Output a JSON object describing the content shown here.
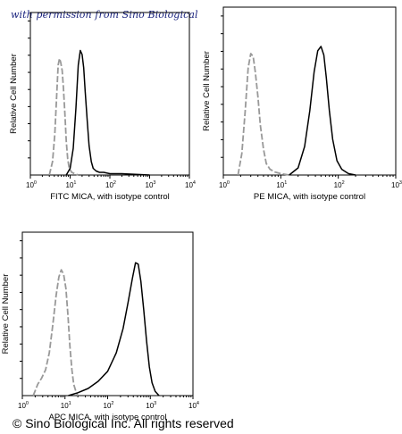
{
  "watermark": "with permission from Sino Biological",
  "copyright": "© Sino Biological Inc. All rights reserved",
  "colors": {
    "isotype": "#999999",
    "sample": "#000000",
    "watermark": "#1a237e"
  },
  "chart_data": [
    {
      "id": "fitc",
      "type": "line",
      "xscale": "log",
      "xlim": [
        1,
        10000
      ],
      "ylim": [
        0,
        1
      ],
      "xticks": [
        "10",
        "10",
        "10",
        "10",
        "10"
      ],
      "xtick_exponents": [
        "0",
        "1",
        "2",
        "3",
        "4"
      ],
      "xlabel": "FITC MICA,  with isotype control",
      "ylabel": "Relative Cell Number",
      "grid": false,
      "series": [
        {
          "role": "isotype",
          "style": "dashed",
          "color": "#999999",
          "x": [
            3.0,
            3.6,
            4.1,
            4.6,
            5.0,
            5.4,
            5.8,
            6.3,
            6.8,
            7.4,
            8.0,
            8.7,
            9.5,
            11,
            13,
            16
          ],
          "y": [
            0.0,
            0.1,
            0.3,
            0.6,
            0.82,
            0.87,
            0.84,
            0.78,
            0.65,
            0.45,
            0.25,
            0.12,
            0.05,
            0.02,
            0.01,
            0.0
          ]
        },
        {
          "role": "sample",
          "style": "solid",
          "color": "#000000",
          "x": [
            8,
            10,
            12,
            14,
            16,
            18,
            20,
            22,
            24,
            27,
            30,
            34,
            38,
            45,
            55,
            70,
            100,
            200,
            1000
          ],
          "y": [
            0.0,
            0.05,
            0.2,
            0.5,
            0.82,
            0.93,
            0.9,
            0.8,
            0.62,
            0.4,
            0.22,
            0.1,
            0.05,
            0.03,
            0.02,
            0.02,
            0.01,
            0.01,
            0.0
          ]
        }
      ]
    },
    {
      "id": "pe",
      "type": "line",
      "xscale": "log",
      "xlim": [
        1,
        1000
      ],
      "ylim": [
        0,
        1
      ],
      "xticks": [
        "10",
        "10",
        "10",
        "10"
      ],
      "xtick_exponents": [
        "0",
        "1",
        "2",
        "3"
      ],
      "xlabel": "PE MICA,  with isotype control",
      "ylabel": "Relative Cell Number",
      "grid": false,
      "series": [
        {
          "role": "isotype",
          "style": "dashed",
          "color": "#999999",
          "x": [
            1.8,
            2.1,
            2.4,
            2.7,
            3.0,
            3.3,
            3.6,
            4.0,
            4.4,
            5.0,
            5.6,
            6.5,
            8,
            10,
            14
          ],
          "y": [
            0.0,
            0.15,
            0.45,
            0.75,
            0.85,
            0.83,
            0.72,
            0.55,
            0.35,
            0.18,
            0.08,
            0.04,
            0.02,
            0.01,
            0.0
          ]
        },
        {
          "role": "sample",
          "style": "solid",
          "color": "#000000",
          "x": [
            14,
            20,
            26,
            32,
            38,
            44,
            50,
            56,
            62,
            70,
            80,
            95,
            115,
            150,
            200
          ],
          "y": [
            0.0,
            0.05,
            0.2,
            0.45,
            0.72,
            0.87,
            0.9,
            0.84,
            0.68,
            0.45,
            0.25,
            0.1,
            0.04,
            0.01,
            0.0
          ]
        }
      ]
    },
    {
      "id": "apc",
      "type": "line",
      "xscale": "log",
      "xlim": [
        1,
        10000
      ],
      "ylim": [
        0,
        1
      ],
      "xticks": [
        "10",
        "10",
        "10",
        "10",
        "10"
      ],
      "xtick_exponents": [
        "0",
        "1",
        "2",
        "3",
        "4"
      ],
      "xlabel": "APC MICA,  with isotype control",
      "ylabel": "Relative Cell Number",
      "grid": false,
      "series": [
        {
          "role": "isotype",
          "style": "dashed",
          "color": "#999999",
          "x": [
            1.8,
            2.3,
            2.8,
            3.5,
            4.3,
            5.2,
            6.2,
            7.2,
            8.2,
            9.3,
            10.5,
            11.8,
            13,
            14.5,
            16,
            18,
            20
          ],
          "y": [
            0.0,
            0.08,
            0.12,
            0.18,
            0.3,
            0.5,
            0.7,
            0.83,
            0.88,
            0.85,
            0.75,
            0.55,
            0.35,
            0.18,
            0.08,
            0.03,
            0.0
          ]
        },
        {
          "role": "sample",
          "style": "solid",
          "color": "#000000",
          "x": [
            12,
            20,
            35,
            60,
            100,
            160,
            230,
            300,
            380,
            450,
            520,
            600,
            700,
            820,
            950,
            1100,
            1300,
            1600
          ],
          "y": [
            0.0,
            0.02,
            0.05,
            0.1,
            0.17,
            0.3,
            0.47,
            0.65,
            0.82,
            0.93,
            0.92,
            0.8,
            0.6,
            0.38,
            0.2,
            0.09,
            0.03,
            0.0
          ]
        }
      ]
    }
  ]
}
